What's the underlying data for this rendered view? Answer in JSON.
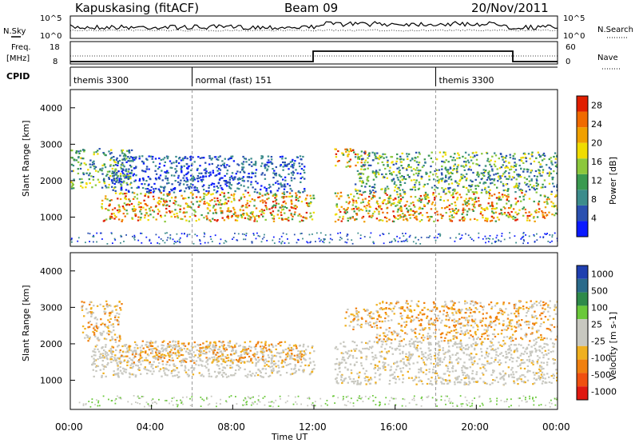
{
  "header": {
    "station": "Kapuskasing (fitACF)",
    "beam": "Beam 09",
    "date": "20/Nov/2011"
  },
  "noise_panel": {
    "left_label": "N.Sky",
    "right_label": "N.Search",
    "left_ticks": [
      "10^5",
      "10^0"
    ],
    "right_ticks": [
      "10^5",
      "10^0"
    ]
  },
  "freq_panel": {
    "left_label_1": "Freq.",
    "left_label_2": "[MHz]",
    "right_label": "Nave",
    "left_ticks": [
      "18",
      "8"
    ],
    "right_ticks": [
      "60",
      "0"
    ]
  },
  "cpid_panel": {
    "label": "CPID",
    "modes": [
      {
        "start_h": 0.0,
        "end_h": 6.0,
        "label": "themis 3300"
      },
      {
        "start_h": 6.0,
        "end_h": 18.0,
        "label": "normal (fast) 151"
      },
      {
        "start_h": 18.0,
        "end_h": 24.0,
        "label": "themis 3300"
      }
    ]
  },
  "time_axis": {
    "label": "Time UT",
    "ticks": [
      "00:00",
      "04:00",
      "08:00",
      "12:00",
      "16:00",
      "20:00",
      "00:00"
    ]
  },
  "colors": {
    "power": [
      "#0a1aff",
      "#2a50b0",
      "#3c8c8c",
      "#3a9a50",
      "#8cc83c",
      "#f0dc00",
      "#f0a000",
      "#f06a00",
      "#e01e00"
    ],
    "velocity_pos": [
      "#1f3fb0",
      "#2a6a8a",
      "#2e8a4a",
      "#6ac83a"
    ],
    "velocity_neutral": "#c8c8c0",
    "velocity_neg": [
      "#f0b020",
      "#f08010",
      "#f05010",
      "#e01810"
    ]
  },
  "chart_data": [
    {
      "type": "heatmap",
      "title": "Power",
      "xlabel": "Time UT",
      "ylabel": "Slant Range [km]",
      "xlim": [
        0,
        24
      ],
      "ylim": [
        200,
        4500
      ],
      "y_ticks": [
        "1000",
        "2000",
        "3000",
        "4000"
      ],
      "colorbar": {
        "label": "Power [dB]",
        "ticks": [
          "4",
          "8",
          "12",
          "16",
          "20",
          "24",
          "28"
        ],
        "range": [
          0,
          30
        ]
      },
      "echo_regions": [
        {
          "t_start": 0.0,
          "t_end": 3.0,
          "range_low": 1800,
          "range_high": 2900,
          "level": "medium"
        },
        {
          "t_start": 1.5,
          "t_end": 12.0,
          "range_low": 900,
          "range_high": 1700,
          "level": "strong"
        },
        {
          "t_start": 2.0,
          "t_end": 11.5,
          "range_low": 1700,
          "range_high": 2700,
          "level": "weak"
        },
        {
          "t_start": 13.0,
          "t_end": 14.5,
          "range_low": 2400,
          "range_high": 2900,
          "level": "strong"
        },
        {
          "t_start": 13.0,
          "t_end": 24.0,
          "range_low": 900,
          "range_high": 1700,
          "level": "strong"
        },
        {
          "t_start": 14.0,
          "t_end": 24.0,
          "range_low": 1700,
          "range_high": 2800,
          "level": "medium"
        }
      ]
    },
    {
      "type": "heatmap",
      "title": "Velocity",
      "xlabel": "Time UT",
      "ylabel": "Slant Range [km]",
      "xlim": [
        0,
        24
      ],
      "ylim": [
        200,
        4500
      ],
      "y_ticks": [
        "1000",
        "2000",
        "3000",
        "4000"
      ],
      "colorbar": {
        "label": "Velocity [m s-1]",
        "ticks": [
          "1000",
          "500",
          "100",
          "25",
          "-25",
          "-100",
          "-500",
          "-1000"
        ]
      },
      "echo_regions": [
        {
          "t_start": 0.5,
          "t_end": 2.5,
          "range_low": 2100,
          "range_high": 3200,
          "level": "-100"
        },
        {
          "t_start": 1.0,
          "t_end": 12.0,
          "range_low": 1100,
          "range_high": 2000,
          "level": "-25"
        },
        {
          "t_start": 2.0,
          "t_end": 11.5,
          "range_low": 1500,
          "range_high": 2100,
          "level": "-100"
        },
        {
          "t_start": 13.0,
          "t_end": 24.0,
          "range_low": 900,
          "range_high": 2100,
          "level": "0"
        },
        {
          "t_start": 13.5,
          "t_end": 15.0,
          "range_low": 2400,
          "range_high": 3000,
          "level": "-100"
        },
        {
          "t_start": 15.0,
          "t_end": 24.0,
          "range_low": 2100,
          "range_high": 3200,
          "level": "-100"
        }
      ]
    }
  ]
}
